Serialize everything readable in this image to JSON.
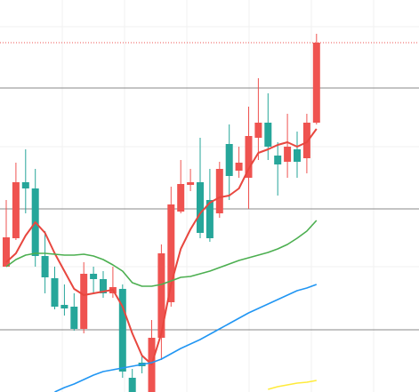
{
  "chart_data": {
    "type": "candlestick",
    "ylim": [
      0,
      441
    ],
    "yticks": [
      70,
      206,
      342
    ],
    "grid": true,
    "last_price_line": 393,
    "up_color": "#ef5350",
    "down_color": "#26a69a",
    "open": [
      141,
      173,
      236,
      229,
      153,
      128,
      98,
      96,
      71,
      133,
      127,
      111,
      116,
      16,
      33,
      0,
      61,
      101,
      203,
      233,
      236,
      216,
      201,
      279,
      249,
      241,
      286,
      303,
      266,
      259,
      273,
      263,
      303
    ],
    "high": [
      216,
      258,
      273,
      251,
      181,
      141,
      121,
      111,
      146,
      141,
      136,
      141,
      121,
      26,
      41,
      81,
      166,
      231,
      261,
      251,
      286,
      251,
      259,
      301,
      276,
      321,
      353,
      336,
      281,
      313,
      293,
      313,
      403
    ],
    "low": [
      141,
      171,
      201,
      141,
      111,
      93,
      86,
      69,
      66,
      111,
      106,
      106,
      16,
      0,
      21,
      0,
      36,
      96,
      201,
      226,
      173,
      169,
      196,
      216,
      241,
      206,
      261,
      261,
      221,
      241,
      241,
      246,
      301
    ],
    "close": [
      174,
      236,
      229,
      153,
      129,
      96,
      94,
      71,
      133,
      127,
      111,
      118,
      23,
      0,
      29,
      61,
      156,
      211,
      234,
      236,
      179,
      173,
      251,
      243,
      258,
      288,
      303,
      276,
      256,
      276,
      259,
      303,
      393
    ],
    "lines": [
      {
        "color": "#e8473f",
        "values": [
          146,
          156,
          176,
          191,
          179,
          156,
          136,
          116,
          109,
          111,
          113,
          115,
          96,
          66,
          41,
          31,
          66,
          121,
          161,
          183,
          201,
          213,
          219,
          221,
          229,
          251,
          269,
          273,
          278,
          281,
          276,
          281,
          296
        ]
      },
      {
        "color": "#4caf50",
        "values": [
          141,
          149,
          154,
          156,
          156,
          155,
          154,
          154,
          155,
          153,
          149,
          143,
          136,
          123,
          119,
          119,
          121,
          125,
          129,
          130,
          133,
          136,
          140,
          144,
          148,
          151,
          154,
          157,
          161,
          166,
          173,
          181,
          193
        ]
      },
      {
        "color": "#2196f3",
        "values": [
          null,
          null,
          null,
          null,
          null,
          0,
          5,
          9,
          14,
          19,
          23,
          25,
          27,
          29,
          31,
          33,
          37,
          43,
          49,
          54,
          59,
          65,
          71,
          77,
          83,
          89,
          94,
          99,
          104,
          109,
          114,
          117,
          121
        ]
      },
      {
        "color": "#ffeb3b",
        "values": [
          null,
          null,
          null,
          null,
          null,
          null,
          null,
          null,
          null,
          null,
          null,
          null,
          null,
          null,
          null,
          null,
          null,
          null,
          null,
          null,
          null,
          null,
          null,
          null,
          null,
          null,
          null,
          3,
          6,
          8,
          10,
          11,
          13
        ]
      }
    ]
  }
}
